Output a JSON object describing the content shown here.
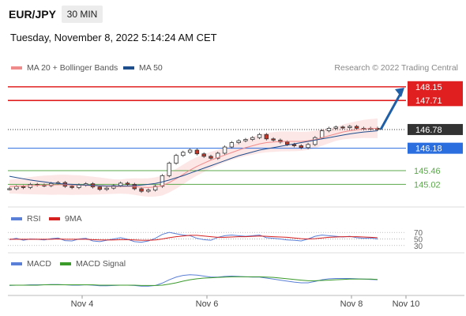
{
  "header": {
    "symbol": "EUR/JPY",
    "interval": "30 MIN",
    "timestamp": "Tuesday, November 8, 2022 5:14:24 AM CET"
  },
  "legend": {
    "ma20_label": "MA 20 + Bollinger Bands",
    "ma20_color": "#f08b8b",
    "ma50_label": "MA 50",
    "ma50_color": "#1f4e8c",
    "copyright": "Research © 2022 Trading Central"
  },
  "rsi_legend": {
    "rsi_label": "RSI",
    "rsi_color": "#5a7fd6",
    "ma9_label": "9MA",
    "ma9_color": "#d62020"
  },
  "macd_legend": {
    "macd_label": "MACD",
    "macd_color": "#5a7fd6",
    "signal_label": "MACD Signal",
    "signal_color": "#3a9a2a"
  },
  "colors": {
    "resistance": "#e02020",
    "current": "#333333",
    "pivot": "#2a6ee0",
    "support": "#5aa84a",
    "arrow": "#1f5fa8"
  },
  "chart_data": [
    {
      "type": "line",
      "panel": "price",
      "x_ticks": [
        "Nov 4",
        "Nov 6",
        "Nov 8",
        "Nov 10"
      ],
      "ylim": [
        144.6,
        148.4
      ],
      "levels": [
        {
          "value": 148.15,
          "label": "148.15",
          "kind": "resistance"
        },
        {
          "value": 147.71,
          "label": "147.71",
          "kind": "resistance"
        },
        {
          "value": 146.78,
          "label": "146.78",
          "kind": "current"
        },
        {
          "value": 146.18,
          "label": "146.18",
          "kind": "pivot"
        },
        {
          "value": 145.46,
          "label": "145.46",
          "kind": "support"
        },
        {
          "value": 145.02,
          "label": "145.02",
          "kind": "support"
        }
      ],
      "close_series": [
        144.88,
        144.95,
        144.92,
        145.02,
        145.0,
        144.98,
        145.05,
        145.08,
        144.96,
        144.92,
        145.0,
        145.04,
        144.94,
        144.86,
        144.9,
        144.98,
        145.06,
        145.02,
        144.88,
        144.8,
        144.84,
        144.96,
        145.3,
        145.7,
        145.95,
        146.05,
        146.12,
        146.0,
        145.92,
        145.86,
        146.02,
        146.22,
        146.36,
        146.42,
        146.46,
        146.52,
        146.62,
        146.48,
        146.44,
        146.38,
        146.3,
        146.26,
        146.2,
        146.3,
        146.52,
        146.74,
        146.82,
        146.86,
        146.84,
        146.88,
        146.82,
        146.8,
        146.82,
        146.78
      ],
      "ma20": [
        144.95,
        144.96,
        144.97,
        144.98,
        144.99,
        145.0,
        145.0,
        145.01,
        145.01,
        145.0,
        145.0,
        144.99,
        144.98,
        144.97,
        144.96,
        144.95,
        144.95,
        144.96,
        144.95,
        144.93,
        144.92,
        144.94,
        144.98,
        145.08,
        145.2,
        145.34,
        145.48,
        145.6,
        145.7,
        145.8,
        145.88,
        145.96,
        146.04,
        146.12,
        146.2,
        146.26,
        146.32,
        146.36,
        146.38,
        146.4,
        146.4,
        146.4,
        146.4,
        146.42,
        146.46,
        146.52,
        146.58,
        146.64,
        146.7,
        146.74,
        146.77,
        146.8,
        146.81,
        146.82
      ],
      "ma50": [
        145.28,
        145.24,
        145.2,
        145.16,
        145.13,
        145.1,
        145.07,
        145.05,
        145.03,
        145.02,
        145.01,
        145.0,
        144.99,
        144.98,
        144.97,
        144.97,
        144.97,
        144.97,
        144.98,
        145.0,
        145.02,
        145.05,
        145.1,
        145.16,
        145.23,
        145.3,
        145.38,
        145.46,
        145.54,
        145.62,
        145.7,
        145.78,
        145.86,
        145.94,
        146.0,
        146.06,
        146.12,
        146.16,
        146.2,
        146.24,
        146.28,
        146.32,
        146.36,
        146.4,
        146.44,
        146.48,
        146.52,
        146.56,
        146.6,
        146.64,
        146.67,
        146.7,
        146.72,
        146.74
      ]
    },
    {
      "type": "line",
      "panel": "rsi",
      "ylim": [
        20,
        80
      ],
      "y_ticks": [
        "70",
        "50",
        "30"
      ],
      "rsi": [
        48,
        52,
        46,
        50,
        49,
        47,
        51,
        53,
        45,
        44,
        50,
        52,
        44,
        42,
        46,
        50,
        54,
        49,
        42,
        40,
        44,
        52,
        64,
        70,
        66,
        62,
        60,
        52,
        48,
        46,
        55,
        60,
        62,
        60,
        58,
        60,
        62,
        54,
        52,
        50,
        47,
        46,
        44,
        50,
        58,
        62,
        60,
        58,
        56,
        58,
        54,
        52,
        53,
        50
      ],
      "ma9": [
        49,
        49,
        49,
        49,
        49,
        49,
        49,
        50,
        49,
        49,
        49,
        49,
        48,
        47,
        47,
        47,
        48,
        48,
        47,
        46,
        46,
        47,
        50,
        54,
        57,
        59,
        61,
        61,
        59,
        57,
        55,
        55,
        56,
        57,
        57,
        58,
        59,
        58,
        57,
        56,
        55,
        53,
        51,
        50,
        51,
        53,
        55,
        56,
        57,
        57,
        57,
        56,
        55,
        54
      ]
    },
    {
      "type": "line",
      "panel": "macd",
      "ylim": [
        -0.3,
        0.5
      ],
      "macd": [
        -0.05,
        -0.04,
        -0.04,
        -0.03,
        -0.03,
        -0.03,
        -0.02,
        -0.02,
        -0.03,
        -0.04,
        -0.04,
        -0.03,
        -0.04,
        -0.06,
        -0.06,
        -0.05,
        -0.04,
        -0.04,
        -0.05,
        -0.07,
        -0.07,
        -0.05,
        0.02,
        0.12,
        0.2,
        0.25,
        0.27,
        0.26,
        0.23,
        0.2,
        0.2,
        0.22,
        0.23,
        0.22,
        0.21,
        0.2,
        0.2,
        0.17,
        0.14,
        0.11,
        0.08,
        0.05,
        0.03,
        0.03,
        0.07,
        0.12,
        0.15,
        0.16,
        0.16,
        0.16,
        0.15,
        0.14,
        0.13,
        0.12
      ],
      "signal": [
        -0.04,
        -0.04,
        -0.04,
        -0.04,
        -0.04,
        -0.03,
        -0.03,
        -0.03,
        -0.03,
        -0.03,
        -0.03,
        -0.03,
        -0.03,
        -0.04,
        -0.04,
        -0.04,
        -0.04,
        -0.04,
        -0.04,
        -0.05,
        -0.05,
        -0.05,
        -0.04,
        -0.01,
        0.03,
        0.08,
        0.12,
        0.15,
        0.17,
        0.18,
        0.19,
        0.2,
        0.21,
        0.21,
        0.21,
        0.21,
        0.21,
        0.2,
        0.19,
        0.17,
        0.15,
        0.13,
        0.11,
        0.09,
        0.09,
        0.1,
        0.11,
        0.12,
        0.13,
        0.14,
        0.14,
        0.14,
        0.14,
        0.13
      ]
    }
  ]
}
